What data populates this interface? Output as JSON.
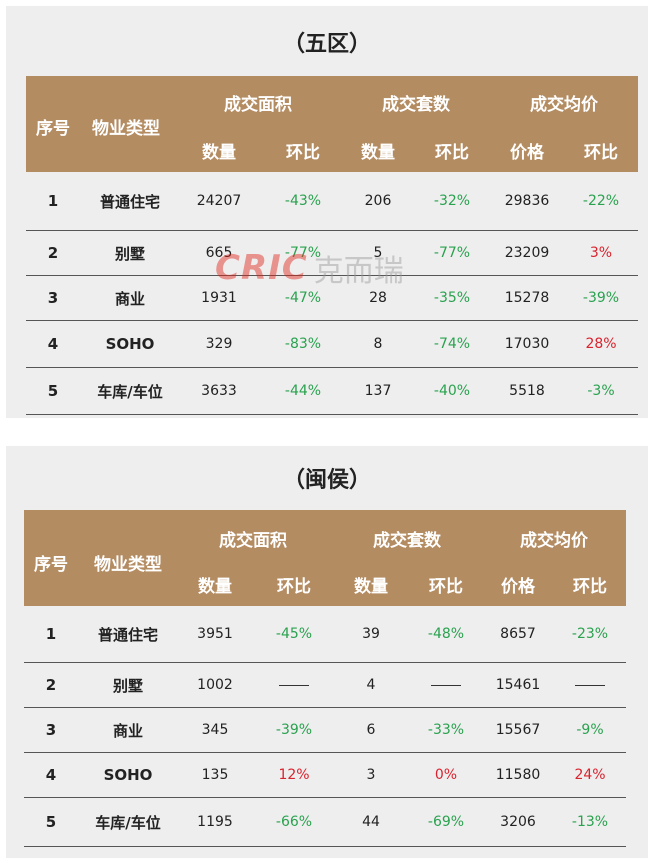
{
  "watermark": {
    "logo": "CRIC",
    "text": "克而瑞"
  },
  "colors": {
    "header_bg": "#b48c62",
    "positive": "#d9232e",
    "negative": "#2aa24f",
    "panel_bg": "#eeeeee"
  },
  "tables": [
    {
      "title": "（五区）",
      "headers": {
        "seq": "序号",
        "type": "物业类型",
        "group_area": "成交面积",
        "group_units": "成交套数",
        "group_price": "成交均价",
        "qty": "数量",
        "mom": "环比",
        "price": "价格"
      },
      "rows": [
        {
          "seq": "1",
          "type": "普通住宅",
          "area": "24207",
          "area_mom": "-43%",
          "units": "206",
          "units_mom": "-32%",
          "price": "29836",
          "price_mom": "-22%"
        },
        {
          "seq": "2",
          "type": "别墅",
          "area": "665",
          "area_mom": "-77%",
          "units": "5",
          "units_mom": "-77%",
          "price": "23209",
          "price_mom": "3%"
        },
        {
          "seq": "3",
          "type": "商业",
          "area": "1931",
          "area_mom": "-47%",
          "units": "28",
          "units_mom": "-35%",
          "price": "15278",
          "price_mom": "-39%"
        },
        {
          "seq": "4",
          "type": "SOHO",
          "area": "329",
          "area_mom": "-83%",
          "units": "8",
          "units_mom": "-74%",
          "price": "17030",
          "price_mom": "28%"
        },
        {
          "seq": "5",
          "type": "车库/车位",
          "area": "3633",
          "area_mom": "-44%",
          "units": "137",
          "units_mom": "-40%",
          "price": "5518",
          "price_mom": "-3%"
        }
      ]
    },
    {
      "title": "（闽侯）",
      "headers": {
        "seq": "序号",
        "type": "物业类型",
        "group_area": "成交面积",
        "group_units": "成交套数",
        "group_price": "成交均价",
        "qty": "数量",
        "mom": "环比",
        "price": "价格"
      },
      "rows": [
        {
          "seq": "1",
          "type": "普通住宅",
          "area": "3951",
          "area_mom": "-45%",
          "units": "39",
          "units_mom": "-48%",
          "price": "8657",
          "price_mom": "-23%"
        },
        {
          "seq": "2",
          "type": "别墅",
          "area": "1002",
          "area_mom": "",
          "units": "4",
          "units_mom": "",
          "price": "15461",
          "price_mom": ""
        },
        {
          "seq": "3",
          "type": "商业",
          "area": "345",
          "area_mom": "-39%",
          "units": "6",
          "units_mom": "-33%",
          "price": "15567",
          "price_mom": "-9%"
        },
        {
          "seq": "4",
          "type": "SOHO",
          "area": "135",
          "area_mom": "12%",
          "units": "3",
          "units_mom": "0%",
          "price": "11580",
          "price_mom": "24%"
        },
        {
          "seq": "5",
          "type": "车库/车位",
          "area": "1195",
          "area_mom": "-66%",
          "units": "44",
          "units_mom": "-69%",
          "price": "3206",
          "price_mom": "-13%"
        }
      ]
    }
  ]
}
